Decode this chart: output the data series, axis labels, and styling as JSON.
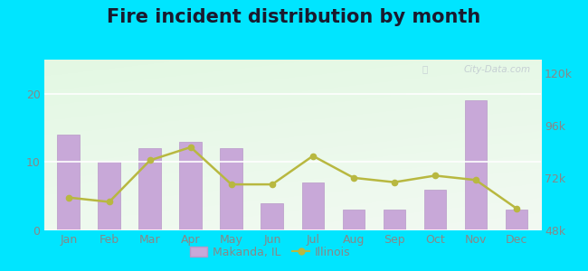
{
  "title": "Fire incident distribution by month",
  "months": [
    "Jan",
    "Feb",
    "Mar",
    "Apr",
    "May",
    "Jun",
    "Jul",
    "Aug",
    "Sep",
    "Oct",
    "Nov",
    "Dec"
  ],
  "makanda_values": [
    14,
    10,
    12,
    13,
    12,
    4,
    7,
    3,
    3,
    6,
    19,
    3
  ],
  "illinois_values": [
    63000,
    61000,
    80000,
    86000,
    69000,
    69000,
    82000,
    72000,
    70000,
    73000,
    71000,
    58000
  ],
  "bar_color": "#c8a8d8",
  "bar_edge_color": "#b898c8",
  "line_color": "#b8b840",
  "outer_bg": "#00e5ff",
  "left_ylim": [
    0,
    25
  ],
  "left_yticks": [
    0,
    10,
    20
  ],
  "right_ylim": [
    48000,
    126000
  ],
  "right_yticks": [
    48000,
    72000,
    96000,
    120000
  ],
  "right_yticklabels": [
    "48k",
    "72k",
    "96k",
    "120k"
  ],
  "watermark": "City-Data.com",
  "legend_makanda": "Makanda, IL",
  "legend_illinois": "Illinois",
  "title_fontsize": 15,
  "axis_fontsize": 9,
  "legend_fontsize": 9,
  "tick_color": "#888888"
}
